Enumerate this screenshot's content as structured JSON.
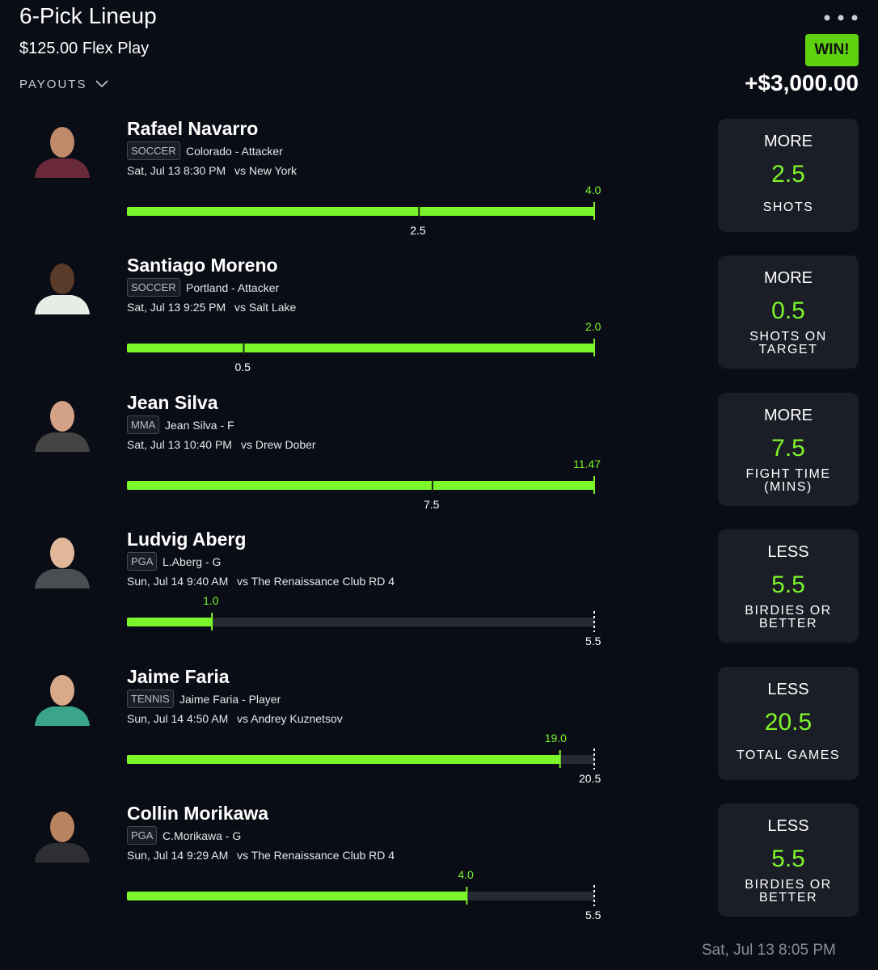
{
  "header": {
    "title": "6-Pick Lineup",
    "subtitle": "$125.00 Flex Play",
    "payouts": "PAYOUTS",
    "status": "WIN!",
    "winnings": "+$3,000.00"
  },
  "picks": [
    {
      "name": "Rafael Navarro",
      "sport": "SOCCER",
      "team": "Colorado - Attacker",
      "when": "Sat, Jul 13 8:30 PM",
      "vs": "vs New York",
      "actual": "4.0",
      "line": "2.5",
      "direction": "MORE",
      "stat": "SHOTS"
    },
    {
      "name": "Santiago Moreno",
      "sport": "SOCCER",
      "team": "Portland - Attacker",
      "when": "Sat, Jul 13 9:25 PM",
      "vs": "vs Salt Lake",
      "actual": "2.0",
      "line": "0.5",
      "direction": "MORE",
      "stat": "SHOTS ON TARGET"
    },
    {
      "name": "Jean Silva",
      "sport": "MMA",
      "team": "Jean Silva - F",
      "when": "Sat, Jul 13 10:40 PM",
      "vs": "vs Drew Dober",
      "actual": "11.47",
      "line": "7.5",
      "direction": "MORE",
      "stat": "FIGHT TIME (MINS)"
    },
    {
      "name": "Ludvig Aberg",
      "sport": "PGA",
      "team": "L.Aberg - G",
      "when": "Sun, Jul 14 9:40 AM",
      "vs": "vs The Renaissance Club RD 4",
      "actual": "1.0",
      "line": "5.5",
      "direction": "LESS",
      "stat": "BIRDIES OR BETTER"
    },
    {
      "name": "Jaime Faria",
      "sport": "TENNIS",
      "team": "Jaime Faria - Player",
      "when": "Sun, Jul 14 4:50 AM",
      "vs": "vs Andrey Kuznetsov",
      "actual": "19.0",
      "line": "20.5",
      "direction": "LESS",
      "stat": "TOTAL GAMES"
    },
    {
      "name": "Collin Morikawa",
      "sport": "PGA",
      "team": "C.Morikawa - G",
      "when": "Sun, Jul 14 9:29 AM",
      "vs": "vs The Renaissance Club RD 4",
      "actual": "4.0",
      "line": "5.5",
      "direction": "LESS",
      "stat": "BIRDIES OR BETTER"
    }
  ],
  "footer": {
    "timestamp": "Sat, Jul 13 8:05 PM"
  }
}
